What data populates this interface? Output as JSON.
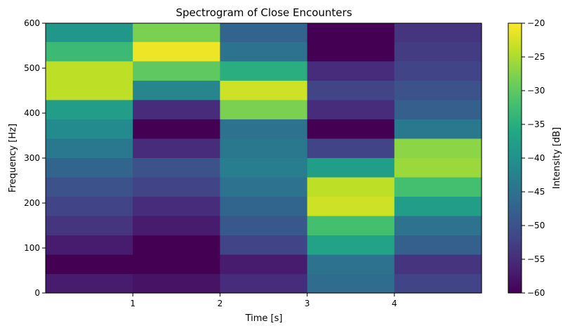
{
  "chart_data": {
    "type": "heatmap",
    "title": "Spectrogram of Close Encounters",
    "xlabel": "Time [s]",
    "ylabel": "Frequency [Hz]",
    "xlim": [
      0,
      5
    ],
    "ylim": [
      0,
      600
    ],
    "x_ticks": [
      1,
      2,
      3,
      4
    ],
    "y_ticks": [
      0,
      100,
      200,
      300,
      400,
      500,
      600
    ],
    "colorbar": {
      "label": "Intensity [dB]",
      "range": [
        -60,
        -20
      ],
      "ticks": [
        -20,
        -25,
        -30,
        -35,
        -40,
        -45,
        -50,
        -55,
        -60
      ],
      "colormap": "viridis"
    },
    "freq_bands": [
      0,
      43,
      86,
      129,
      172,
      215,
      258,
      301,
      344,
      387,
      430,
      473,
      516,
      559,
      600
    ],
    "segments": [
      {
        "t_start": 0.0,
        "t_end": 1.0,
        "tone_hz": 440,
        "band_db": [
          -57,
          -60,
          -57,
          -54,
          -52,
          -50,
          -47,
          -44,
          -41,
          -38,
          -24,
          -24,
          -33,
          -39
        ]
      },
      {
        "t_start": 1.0,
        "t_end": 2.0,
        "tone_hz": 494,
        "band_db": [
          -58,
          -60,
          -60,
          -57,
          -55,
          -52,
          -50,
          -55,
          -60,
          -55,
          -42,
          -30,
          -21,
          -28
        ]
      },
      {
        "t_start": 2.0,
        "t_end": 3.0,
        "tone_hz": 392,
        "band_db": [
          -55,
          -57,
          -52,
          -49,
          -47,
          -45,
          -43,
          -44,
          -45,
          -28,
          -23,
          -35,
          -45,
          -47
        ]
      },
      {
        "t_start": 3.0,
        "t_end": 4.0,
        "tone_hz": 196,
        "band_db": [
          -46,
          -45,
          -37,
          -32,
          -23,
          -24,
          -38,
          -52,
          -60,
          -55,
          -52,
          -55,
          -60,
          -60
        ]
      },
      {
        "t_start": 4.0,
        "t_end": 5.0,
        "tone_hz": 294,
        "band_db": [
          -52,
          -54,
          -48,
          -45,
          -38,
          -32,
          -26,
          -27,
          -44,
          -48,
          -50,
          -52,
          -53,
          -54
        ]
      }
    ]
  }
}
